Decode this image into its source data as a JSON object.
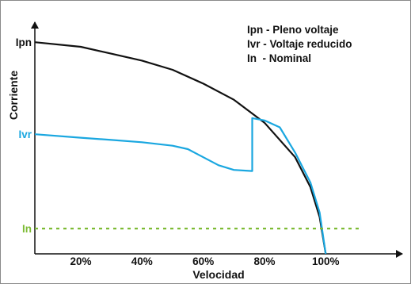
{
  "chart_data": {
    "type": "line",
    "title": "",
    "xlabel": "Velocidad",
    "ylabel": "Corriente",
    "xlim": [
      5,
      125
    ],
    "ylim": [
      0,
      100
    ],
    "x_ticks": [
      20,
      40,
      60,
      80,
      100
    ],
    "x_tick_labels": [
      "20%",
      "40%",
      "60%",
      "80%",
      "100%"
    ],
    "y_levels": [
      {
        "label": "Ipn",
        "value": 92,
        "color": "#111111"
      },
      {
        "label": "Ivr",
        "value": 52,
        "color": "#1aa7e0"
      },
      {
        "label": "In",
        "value": 11,
        "color": "#7dbb35"
      }
    ],
    "legend": {
      "placement": "top-right",
      "entries": [
        "Ipn - Pleno voltaje",
        "Ivr - Voltaje reducido",
        "In  - Nominal"
      ]
    },
    "series": [
      {
        "key": "Ipn",
        "color": "#111111",
        "style": "solid",
        "points": [
          [
            5,
            92
          ],
          [
            20,
            90
          ],
          [
            30,
            87
          ],
          [
            40,
            84
          ],
          [
            50,
            80
          ],
          [
            60,
            74
          ],
          [
            70,
            67
          ],
          [
            80,
            57
          ],
          [
            90,
            42
          ],
          [
            95,
            29
          ],
          [
            98,
            16
          ],
          [
            100,
            0
          ]
        ]
      },
      {
        "key": "Ivr",
        "color": "#1aa7e0",
        "style": "solid",
        "points": [
          [
            5,
            52
          ],
          [
            20,
            50.5
          ],
          [
            30,
            49.5
          ],
          [
            40,
            48.5
          ],
          [
            50,
            47
          ],
          [
            55,
            45.5
          ],
          [
            60,
            42
          ],
          [
            65,
            38.5
          ],
          [
            70,
            36.5
          ],
          [
            76,
            36
          ],
          [
            76,
            59
          ],
          [
            80,
            58
          ],
          [
            85,
            55
          ],
          [
            90,
            44
          ],
          [
            95,
            31
          ],
          [
            98,
            18
          ],
          [
            100,
            0
          ]
        ]
      },
      {
        "key": "In",
        "color": "#7dbb35",
        "style": "dashed",
        "points": [
          [
            5,
            11
          ],
          [
            112,
            11
          ]
        ]
      }
    ]
  }
}
